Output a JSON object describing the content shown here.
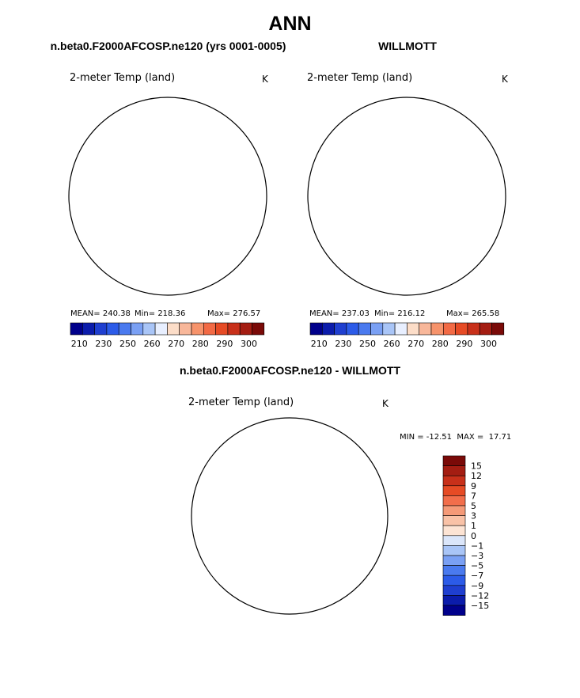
{
  "page": {
    "title": "ANN",
    "diff_title": "n.beta0.F2000AFCOSP.ne120 - WILLMOTT"
  },
  "colors": {
    "cold": [
      "#00008b",
      "#0b1cab",
      "#1f3fd0",
      "#2c5be8",
      "#4a7aef",
      "#7aa0f4",
      "#a9c5f7",
      "#e8efff"
    ],
    "warm": [
      "#fcddc8",
      "#f8b79a",
      "#f6936b",
      "#f26a45",
      "#e64b25",
      "#c8301a",
      "#a41d12",
      "#7a0a08"
    ],
    "diff": [
      "#00008b",
      "#0b1cab",
      "#1f3fd0",
      "#2c5be8",
      "#4a7aef",
      "#7aa0f4",
      "#a9c5f7",
      "#dbe6fa",
      "#fde4d4",
      "#f9c2a7",
      "#f59a78",
      "#f26e4b",
      "#e64b25",
      "#c8301a",
      "#a41d12",
      "#7a0a08"
    ]
  },
  "chart_data": [
    {
      "type": "heatmap",
      "panel": "model",
      "title": "n.beta0.F2000AFCOSP.ne120 (yrs 0001-0005)",
      "variable": "2-meter Temp (land)",
      "units": "K",
      "mean_label": "MEAN=",
      "mean": "240.38",
      "min_label": "Min=",
      "min": "218.36",
      "max_label": "Max=",
      "max": "276.57",
      "levels": [
        210,
        220,
        230,
        240,
        250,
        255,
        260,
        265,
        270,
        275,
        280,
        285,
        290,
        295,
        300
      ],
      "colorbar_labels": [
        "210",
        "230",
        "250",
        "260",
        "270",
        "280",
        "290",
        "300"
      ]
    },
    {
      "type": "heatmap",
      "panel": "obs",
      "title": "WILLMOTT",
      "variable": "2-meter Temp (land)",
      "units": "K",
      "mean_label": "MEAN=",
      "mean": "237.03",
      "min_label": "Min=",
      "min": "216.12",
      "max_label": "Max=",
      "max": "265.58",
      "levels": [
        210,
        220,
        230,
        240,
        250,
        255,
        260,
        265,
        270,
        275,
        280,
        285,
        290,
        295,
        300
      ],
      "colorbar_labels": [
        "210",
        "230",
        "250",
        "260",
        "270",
        "280",
        "290",
        "300"
      ]
    },
    {
      "type": "heatmap",
      "panel": "difference",
      "title": "n.beta0.F2000AFCOSP.ne120 - WILLMOTT",
      "variable": "2-meter Temp (land)",
      "units": "K",
      "minmax_text": "MIN = -12.51  MAX =  17.71",
      "min": -12.51,
      "max": 17.71,
      "levels": [
        15,
        12,
        9,
        7,
        5,
        3,
        1,
        0,
        -1,
        -3,
        -5,
        -7,
        -9,
        -12,
        -15
      ],
      "colorbar_labels": [
        "15",
        "12",
        "9",
        "7",
        "5",
        "3",
        "1",
        "0",
        "−1",
        "−3",
        "−5",
        "−7",
        "−9",
        "−12",
        "−15"
      ]
    }
  ]
}
